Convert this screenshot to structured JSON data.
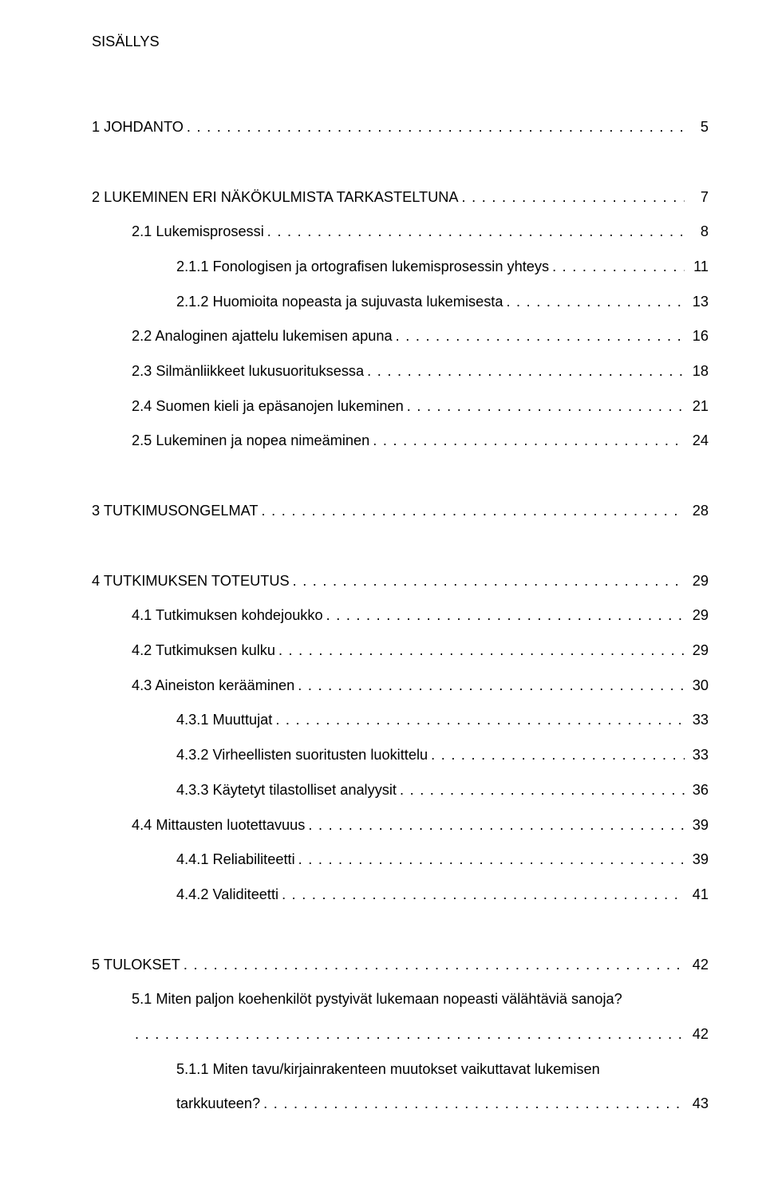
{
  "title": "SISÄLLYS",
  "entries": [
    {
      "label": "1 JOHDANTO",
      "page": "5",
      "indent": 0,
      "gapBefore": false
    },
    {
      "label": "2 LUKEMINEN ERI NÄKÖKULMISTA TARKASTELTUNA",
      "page": "7",
      "indent": 0,
      "gapBefore": true
    },
    {
      "label": "2.1 Lukemisprosessi",
      "page": "8",
      "indent": 1,
      "gapBefore": false
    },
    {
      "label": "2.1.1 Fonologisen ja ortografisen lukemisprosessin yhteys",
      "page": "11",
      "indent": 2,
      "gapBefore": false
    },
    {
      "label": "2.1.2 Huomioita nopeasta ja sujuvasta lukemisesta",
      "page": "13",
      "indent": 2,
      "gapBefore": false
    },
    {
      "label": "2.2 Analoginen ajattelu lukemisen apuna",
      "page": "16",
      "indent": 1,
      "gapBefore": false
    },
    {
      "label": "2.3 Silmänliikkeet lukusuorituksessa",
      "page": "18",
      "indent": 1,
      "gapBefore": false
    },
    {
      "label": "2.4 Suomen kieli ja epäsanojen lukeminen",
      "page": "21",
      "indent": 1,
      "gapBefore": false
    },
    {
      "label": "2.5 Lukeminen ja nopea nimeäminen",
      "page": "24",
      "indent": 1,
      "gapBefore": false
    },
    {
      "label": "3 TUTKIMUSONGELMAT",
      "page": "28",
      "indent": 0,
      "gapBefore": true
    },
    {
      "label": "4 TUTKIMUKSEN TOTEUTUS",
      "page": "29",
      "indent": 0,
      "gapBefore": true
    },
    {
      "label": "4.1 Tutkimuksen kohdejoukko",
      "page": "29",
      "indent": 1,
      "gapBefore": false
    },
    {
      "label": "4.2 Tutkimuksen kulku",
      "page": "29",
      "indent": 1,
      "gapBefore": false
    },
    {
      "label": "4.3 Aineiston kerääminen",
      "page": "30",
      "indent": 1,
      "gapBefore": false
    },
    {
      "label": "4.3.1 Muuttujat",
      "page": "33",
      "indent": 2,
      "gapBefore": false
    },
    {
      "label": "4.3.2 Virheellisten suoritusten luokittelu",
      "page": "33",
      "indent": 2,
      "gapBefore": false
    },
    {
      "label": "4.3.3 Käytetyt tilastolliset analyysit",
      "page": "36",
      "indent": 2,
      "gapBefore": false
    },
    {
      "label": "4.4 Mittausten luotettavuus",
      "page": "39",
      "indent": 1,
      "gapBefore": false
    },
    {
      "label": "4.4.1 Reliabiliteetti",
      "page": "39",
      "indent": 2,
      "gapBefore": false
    },
    {
      "label": "4.4.2 Validiteetti",
      "page": "41",
      "indent": 2,
      "gapBefore": false
    },
    {
      "label": "5 TULOKSET",
      "page": "42",
      "indent": 0,
      "gapBefore": true
    }
  ],
  "wrapped51": {
    "text": "5.1 Miten paljon koehenkilöt pystyivät lukemaan nopeasti välähtäviä sanoja?",
    "page": "42"
  },
  "wrapped511": {
    "text": "5.1.1 Miten tavu/kirjainrakenteen muutokset vaikuttavat lukemisen",
    "text2": "tarkkuuteen?",
    "page": "43"
  }
}
